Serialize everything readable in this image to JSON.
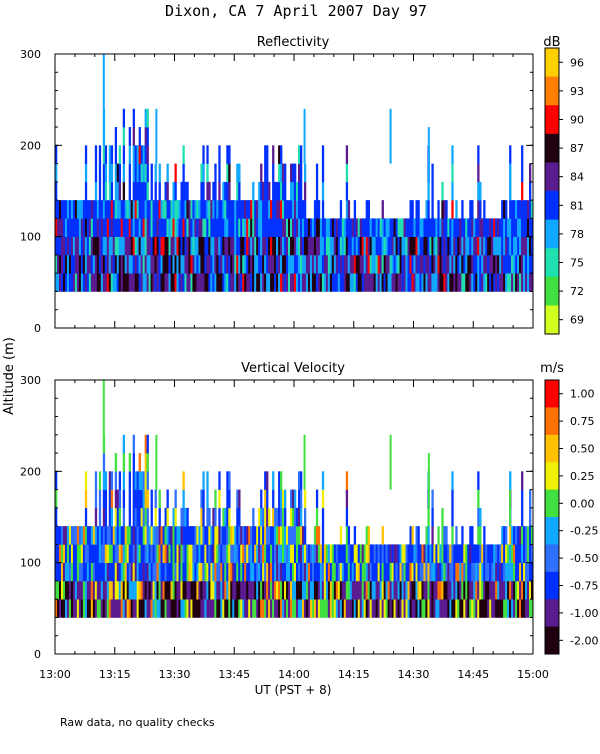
{
  "page_title": "Dixon, CA   7 April 2007   Day  97",
  "footnote": "Raw data, no quality checks",
  "shared_y_label": "Altitude (m)",
  "chart_data": [
    {
      "type": "heatmap",
      "title": "Reflectivity",
      "colorbar_unit": "dB",
      "colorbar_labels": [
        "96",
        "93",
        "90",
        "87",
        "84",
        "81",
        "78",
        "75",
        "72",
        "69"
      ],
      "colorbar_colors": [
        "#ffd000",
        "#ff8000",
        "#ff0000",
        "#200010",
        "#5a1a90",
        "#0030ff",
        "#10a8ff",
        "#20e0b0",
        "#40e040",
        "#d0ff20"
      ],
      "ylim": [
        0,
        300
      ],
      "ytick_labels": [
        "0",
        "100",
        "200",
        "300"
      ],
      "xlim": [
        "13:00",
        "15:00"
      ],
      "approx_echo_top_m": 140,
      "approx_echo_base_m": 40,
      "sporadic_max_top_m": 300
    },
    {
      "type": "heatmap",
      "title": "Vertical Velocity",
      "colorbar_unit": "m/s",
      "colorbar_labels": [
        "1.00",
        "0.75",
        "0.50",
        "0.25",
        "0.00",
        "-0.25",
        "-0.50",
        "-0.75",
        "-1.00",
        "-2.00"
      ],
      "colorbar_colors": [
        "#ff0000",
        "#ff7000",
        "#ffc000",
        "#f0f000",
        "#40e040",
        "#10a8ff",
        "#3070ff",
        "#0030ff",
        "#5a1a90",
        "#200010"
      ],
      "ylim": [
        0,
        300
      ],
      "ytick_labels": [
        "0",
        "100",
        "200",
        "300"
      ],
      "xlim": [
        "13:00",
        "15:00"
      ],
      "xtick_labels": [
        "13:00",
        "13:15",
        "13:30",
        "13:45",
        "14:00",
        "14:15",
        "14:30",
        "14:45",
        "15:00"
      ],
      "xlabel": "UT   (PST + 8)",
      "approx_echo_top_m": 140,
      "approx_echo_base_m": 40,
      "sporadic_max_top_m": 300
    }
  ]
}
